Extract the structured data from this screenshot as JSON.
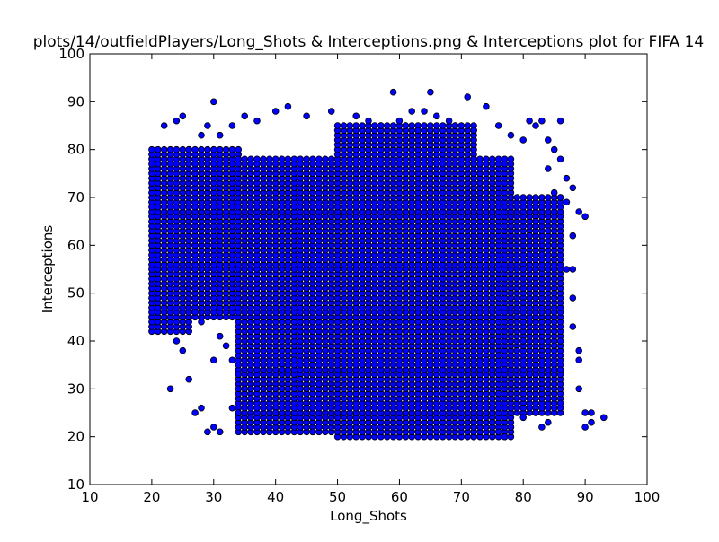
{
  "chart_data": {
    "type": "scatter",
    "title": "plots/14/outfieldPlayers/Long_Shots & Interceptions.png & Interceptions plot for FIFA 14",
    "xlabel": "Long_Shots",
    "ylabel": "Interceptions",
    "xlim": [
      10,
      100
    ],
    "ylim": [
      10,
      100
    ],
    "xticks": [
      10,
      20,
      30,
      40,
      50,
      60,
      70,
      80,
      90,
      100
    ],
    "yticks": [
      10,
      20,
      30,
      40,
      50,
      60,
      70,
      80,
      90,
      100
    ],
    "grid": false,
    "marker_color": "#0000ff",
    "marker_edge_color": "#000000",
    "regions": [
      {
        "x": [
          20,
          26
        ],
        "y": [
          42,
          80
        ]
      },
      {
        "x": [
          26,
          34
        ],
        "y": [
          45,
          80
        ]
      },
      {
        "x": [
          34,
          50
        ],
        "y": [
          30,
          78
        ]
      },
      {
        "x": [
          34,
          50
        ],
        "y": [
          21,
          30
        ]
      },
      {
        "x": [
          50,
          72
        ],
        "y": [
          20,
          85
        ]
      },
      {
        "x": [
          72,
          78
        ],
        "y": [
          20,
          78
        ]
      },
      {
        "x": [
          78,
          86
        ],
        "y": [
          25,
          70
        ]
      }
    ],
    "points": [
      [
        30,
        90
      ],
      [
        59,
        92
      ],
      [
        65,
        92
      ],
      [
        71,
        91
      ],
      [
        42,
        89
      ],
      [
        74,
        89
      ],
      [
        40,
        88
      ],
      [
        49,
        88
      ],
      [
        53,
        87
      ],
      [
        60,
        86
      ],
      [
        62,
        88
      ],
      [
        64,
        88
      ],
      [
        66,
        87
      ],
      [
        68,
        86
      ],
      [
        25,
        87
      ],
      [
        24,
        86
      ],
      [
        22,
        85
      ],
      [
        29,
        85
      ],
      [
        35,
        87
      ],
      [
        37,
        86
      ],
      [
        33,
        85
      ],
      [
        28,
        83
      ],
      [
        31,
        83
      ],
      [
        45,
        87
      ],
      [
        55,
        86
      ],
      [
        57,
        85
      ],
      [
        61,
        85
      ],
      [
        63,
        84
      ],
      [
        69,
        85
      ],
      [
        72,
        84
      ],
      [
        76,
        85
      ],
      [
        78,
        83
      ],
      [
        81,
        86
      ],
      [
        82,
        85
      ],
      [
        83,
        86
      ],
      [
        86,
        86
      ],
      [
        80,
        82
      ],
      [
        84,
        82
      ],
      [
        85,
        80
      ],
      [
        86,
        78
      ],
      [
        87,
        74
      ],
      [
        84,
        76
      ],
      [
        85,
        71
      ],
      [
        86,
        70
      ],
      [
        87,
        69
      ],
      [
        88,
        72
      ],
      [
        89,
        67
      ],
      [
        90,
        66
      ],
      [
        88,
        62
      ],
      [
        85,
        60
      ],
      [
        84,
        63
      ],
      [
        82,
        65
      ],
      [
        81,
        62
      ],
      [
        83,
        58
      ],
      [
        85,
        57
      ],
      [
        87,
        55
      ],
      [
        88,
        55
      ],
      [
        86,
        52
      ],
      [
        85,
        50
      ],
      [
        88,
        49
      ],
      [
        84,
        46
      ],
      [
        88,
        43
      ],
      [
        86,
        40
      ],
      [
        85,
        39
      ],
      [
        83,
        37
      ],
      [
        82,
        35
      ],
      [
        85,
        34
      ],
      [
        86,
        34
      ],
      [
        89,
        38
      ],
      [
        89,
        36
      ],
      [
        81,
        33
      ],
      [
        83,
        30
      ],
      [
        84,
        28
      ],
      [
        86,
        27
      ],
      [
        82,
        25
      ],
      [
        84,
        23
      ],
      [
        83,
        22
      ],
      [
        89,
        30
      ],
      [
        90,
        25
      ],
      [
        91,
        25
      ],
      [
        91,
        23
      ],
      [
        90,
        22
      ],
      [
        93,
        24
      ],
      [
        23,
        30
      ],
      [
        26,
        32
      ],
      [
        25,
        38
      ],
      [
        24,
        40
      ],
      [
        27,
        25
      ],
      [
        28,
        26
      ],
      [
        29,
        21
      ],
      [
        30,
        22
      ],
      [
        31,
        21
      ],
      [
        30,
        36
      ],
      [
        31,
        41
      ],
      [
        28,
        44
      ],
      [
        27,
        46
      ],
      [
        32,
        39
      ],
      [
        33,
        36
      ],
      [
        34,
        33
      ],
      [
        35,
        30
      ],
      [
        36,
        28
      ],
      [
        33,
        26
      ],
      [
        34,
        25
      ],
      [
        35,
        22
      ],
      [
        36,
        24
      ],
      [
        44,
        32
      ],
      [
        46,
        35
      ],
      [
        48,
        38
      ],
      [
        42,
        28
      ],
      [
        45,
        26
      ],
      [
        47,
        31
      ],
      [
        49,
        27
      ],
      [
        43,
        36
      ],
      [
        41,
        34
      ],
      [
        40,
        25
      ],
      [
        38,
        22
      ],
      [
        39,
        30
      ],
      [
        47,
        22
      ],
      [
        48,
        24
      ],
      [
        46,
        21
      ],
      [
        75,
        40
      ],
      [
        76,
        37
      ],
      [
        77,
        34
      ],
      [
        78,
        31
      ],
      [
        79,
        28
      ],
      [
        80,
        26
      ],
      [
        78,
        42
      ],
      [
        79,
        45
      ],
      [
        80,
        48
      ],
      [
        81,
        44
      ],
      [
        80,
        40
      ],
      [
        79,
        38
      ],
      [
        76,
        21
      ],
      [
        75,
        23
      ],
      [
        78,
        22
      ],
      [
        80,
        24
      ],
      [
        77,
        20
      ],
      [
        76,
        29
      ],
      [
        74,
        36
      ],
      [
        78,
        50
      ],
      [
        80,
        55
      ],
      [
        81,
        58
      ],
      [
        82,
        52
      ],
      [
        83,
        54
      ]
    ]
  }
}
